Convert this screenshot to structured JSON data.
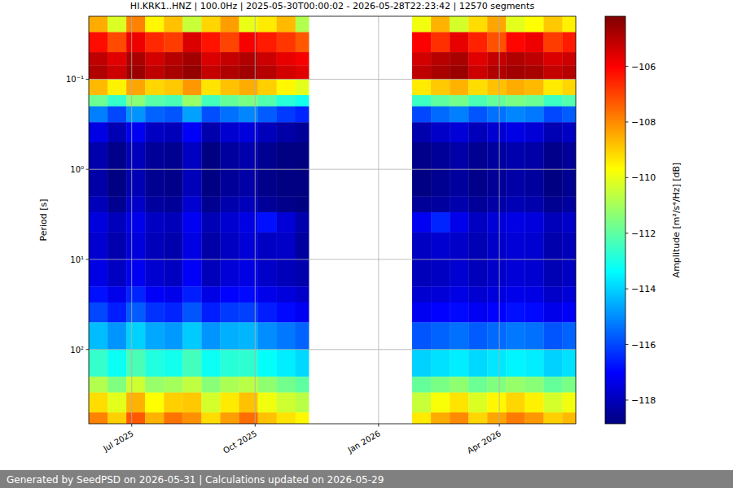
{
  "chart_data": {
    "type": "heatmap",
    "title": "HI.KRK1..HNZ | 100.0Hz | 2025-05-30T00:00:02 - 2026-05-28T22:23:42 | 12570 segments",
    "y_label": "Period [s]",
    "footer": "Generated by SeedPSD on 2026-05-31 | Calculations updated on 2026-05-29",
    "log": "y",
    "grid": true,
    "color": "jet",
    "xlim": [
      "2025-05-30",
      "2026-05-28"
    ],
    "xticks": [
      {
        "value": "2025-07-01",
        "label": "Jul 2025"
      },
      {
        "value": "2025-10-01",
        "label": "Oct 2025"
      },
      {
        "value": "2026-01-01",
        "label": "Jan 2026"
      },
      {
        "value": "2026-04-01",
        "label": "Apr 2026"
      }
    ],
    "ylim": [
      0.02,
      667
    ],
    "yticks": [
      {
        "value": 0.1,
        "label": "10⁻¹"
      },
      {
        "value": 1,
        "label": "10⁰"
      },
      {
        "value": 10,
        "label": "10¹"
      },
      {
        "value": 100,
        "label": "10²"
      }
    ],
    "x": [
      "2025-05-30",
      "2025-06-13",
      "2025-06-27",
      "2025-07-11",
      "2025-07-25",
      "2025-08-08",
      "2025-08-22",
      "2025-09-05",
      "2025-09-19",
      "2025-10-03",
      "2025-10-17",
      "2025-10-31",
      "2025-11-10",
      "2026-01-26",
      "2026-02-09",
      "2026-02-23",
      "2026-03-09",
      "2026-03-23",
      "2026-04-06",
      "2026-04-20",
      "2026-05-04",
      "2026-05-18"
    ],
    "y_bins": [
      0.02,
      0.03,
      0.05,
      0.07,
      0.1,
      0.15,
      0.2,
      0.3,
      0.5,
      1,
      2,
      3,
      5,
      10,
      20,
      30,
      50,
      100,
      200,
      300,
      500,
      667
    ],
    "cells": [
      [
        -108.5,
        -110.2,
        -107.9,
        -109.6,
        -108.8,
        -110.5,
        -109.1,
        -108.3,
        -110.0,
        -109.4,
        -108.7,
        -110.8,
        null,
        -109.9,
        -108.6,
        -110.3,
        -109.2,
        -108.4,
        -110.1,
        -109.7,
        -108.9,
        -109.5
      ],
      [
        -106.2,
        -107.1,
        -105.8,
        -106.6,
        -106.9,
        -105.5,
        -106.3,
        -107.0,
        -105.9,
        -106.4,
        -106.8,
        -107.3,
        null,
        -106.0,
        -106.7,
        -105.7,
        -106.5,
        -107.2,
        -106.1,
        -105.8,
        -106.9,
        -106.4
      ],
      [
        -105.1,
        -105.6,
        -104.8,
        -105.4,
        -105.0,
        -104.7,
        -105.5,
        -105.2,
        -104.9,
        -105.3,
        -105.7,
        -105.9,
        null,
        -105.4,
        -105.0,
        -104.8,
        -105.6,
        -105.2,
        -104.9,
        -105.1,
        -105.5,
        -105.3
      ],
      [
        -104.9,
        -105.3,
        -104.6,
        -105.1,
        -104.8,
        -104.5,
        -105.2,
        -104.9,
        -104.7,
        -105.0,
        -105.4,
        -105.6,
        null,
        -105.1,
        -104.8,
        -104.6,
        -105.3,
        -104.9,
        -104.7,
        -104.8,
        -105.2,
        -105.0
      ],
      [
        -108.7,
        -109.5,
        -108.4,
        -109.1,
        -108.9,
        -108.2,
        -109.3,
        -108.8,
        -108.5,
        -109.0,
        -109.6,
        -110.1,
        null,
        -109.4,
        -108.9,
        -108.6,
        -109.2,
        -108.8,
        -108.5,
        -108.7,
        -109.4,
        -109.1
      ],
      [
        -111.8,
        -112.6,
        -111.4,
        -112.1,
        -112.3,
        -111.2,
        -112.4,
        -111.9,
        -111.6,
        -112.2,
        -112.8,
        -113.1,
        null,
        -112.5,
        -112.0,
        -111.7,
        -112.3,
        -111.9,
        -111.6,
        -111.8,
        -112.5,
        -112.2
      ],
      [
        -115.2,
        -116.0,
        -114.9,
        -115.6,
        -115.8,
        -114.7,
        -115.9,
        -115.4,
        -115.1,
        -115.7,
        -116.2,
        -116.5,
        null,
        -116.0,
        -115.5,
        -115.2,
        -115.8,
        -115.4,
        -115.1,
        -115.3,
        -116.0,
        -115.7
      ],
      [
        -117.4,
        -118.1,
        -117.2,
        -117.9,
        -118.0,
        -117.1,
        -118.2,
        -117.7,
        -117.5,
        -118.0,
        -118.3,
        -118.5,
        null,
        -118.2,
        -117.8,
        -117.6,
        -118.0,
        -117.7,
        -117.4,
        -117.6,
        -118.1,
        -117.9
      ],
      [
        -118.2,
        -118.7,
        -118.0,
        -118.5,
        -118.6,
        -117.9,
        -118.8,
        -118.4,
        -118.2,
        -118.6,
        -118.8,
        -118.9,
        null,
        -118.7,
        -118.5,
        -118.3,
        -118.6,
        -118.4,
        -118.2,
        -118.3,
        -118.7,
        -118.5
      ],
      [
        -118.3,
        -118.8,
        -118.1,
        -118.6,
        -118.7,
        -118.0,
        -118.8,
        -118.5,
        -118.3,
        -118.7,
        -118.8,
        -118.9,
        null,
        -118.8,
        -118.6,
        -118.4,
        -118.7,
        -118.5,
        -118.3,
        -118.4,
        -118.8,
        -118.6
      ],
      [
        -118.0,
        -118.6,
        -117.8,
        -118.4,
        -118.5,
        -117.7,
        -118.6,
        -118.2,
        -118.0,
        -118.5,
        -118.7,
        -118.8,
        null,
        -118.5,
        -118.4,
        -118.2,
        -118.5,
        -118.3,
        -118.1,
        -118.2,
        -118.6,
        -118.4
      ],
      [
        -117.5,
        -118.0,
        -117.3,
        -117.9,
        -118.0,
        -117.2,
        -118.1,
        -117.7,
        -117.4,
        -116.8,
        -117.6,
        -118.2,
        null,
        -117.2,
        -116.5,
        -117.3,
        -117.9,
        -117.6,
        -117.4,
        -117.5,
        -118.0,
        -117.8
      ],
      [
        -117.7,
        -118.2,
        -117.5,
        -118.0,
        -118.2,
        -117.4,
        -118.3,
        -117.9,
        -117.6,
        -117.9,
        -117.8,
        -118.4,
        null,
        -117.9,
        -117.7,
        -117.8,
        -118.1,
        -117.8,
        -117.6,
        -117.7,
        -118.2,
        -118.0
      ],
      [
        -117.4,
        -117.9,
        -117.2,
        -117.7,
        -117.9,
        -117.1,
        -118.0,
        -117.6,
        -117.4,
        -117.8,
        -118.0,
        -118.2,
        null,
        -118.0,
        -117.9,
        -117.7,
        -118.0,
        -117.8,
        -117.6,
        -117.7,
        -118.1,
        -117.9
      ],
      [
        -116.8,
        -117.3,
        -116.5,
        -117.1,
        -117.3,
        -116.6,
        -117.4,
        -117.0,
        -116.9,
        -117.3,
        -117.5,
        -117.8,
        null,
        -117.7,
        -117.6,
        -117.4,
        -117.7,
        -117.5,
        -117.3,
        -117.4,
        -117.8,
        -117.6
      ],
      [
        -116.0,
        -116.6,
        -115.7,
        -116.3,
        -116.5,
        -115.8,
        -116.6,
        -116.2,
        -116.1,
        -116.6,
        -116.9,
        -117.2,
        null,
        -117.2,
        -117.0,
        -116.9,
        -117.2,
        -117.0,
        -116.8,
        -116.9,
        -117.3,
        -117.1
      ],
      [
        -114.3,
        -114.9,
        -114.0,
        -114.6,
        -114.8,
        -114.1,
        -114.9,
        -114.5,
        -114.4,
        -115.0,
        -115.3,
        -115.6,
        null,
        -115.8,
        -115.6,
        -115.4,
        -115.7,
        -115.5,
        -115.3,
        -115.4,
        -115.8,
        -115.6
      ],
      [
        -112.6,
        -113.2,
        -112.3,
        -112.9,
        -113.1,
        -112.4,
        -113.2,
        -112.8,
        -112.7,
        -113.3,
        -113.6,
        -113.9,
        null,
        -114.0,
        -113.8,
        -113.6,
        -113.9,
        -113.7,
        -113.5,
        -113.6,
        -114.0,
        -113.8
      ],
      [
        -110.8,
        -111.5,
        -110.4,
        -111.2,
        -111.0,
        -110.6,
        -111.4,
        -110.9,
        -110.7,
        -111.3,
        -111.7,
        -112.0,
        null,
        -111.9,
        -111.6,
        -111.3,
        -111.8,
        -111.5,
        -111.2,
        -111.4,
        -111.9,
        -111.6
      ],
      [
        -109.2,
        -110.1,
        -108.6,
        -109.7,
        -109.0,
        -108.9,
        -110.3,
        -109.4,
        -108.8,
        -109.9,
        -110.4,
        -110.7,
        null,
        -110.5,
        -109.8,
        -109.3,
        -110.2,
        -109.6,
        -109.1,
        -109.5,
        -110.3,
        -109.9
      ],
      [
        -107.9,
        -109.0,
        -107.3,
        -108.6,
        -107.7,
        -108.1,
        -109.2,
        -108.3,
        -107.6,
        -108.8,
        -109.3,
        -109.6,
        null,
        -109.4,
        -108.5,
        -108.0,
        -109.1,
        -108.4,
        -107.8,
        -108.2,
        -109.0,
        -108.7
      ]
    ],
    "colorbar": {
      "label": "Amplitude [m²/s⁴/Hz] [dB]",
      "lim": [
        -118.85,
        -104.2
      ],
      "ticks": [
        {
          "value": -106,
          "label": "−106"
        },
        {
          "value": -108,
          "label": "−108"
        },
        {
          "value": -110,
          "label": "−110"
        },
        {
          "value": -112,
          "label": "−112"
        },
        {
          "value": -114,
          "label": "−114"
        },
        {
          "value": -116,
          "label": "−116"
        },
        {
          "value": -118,
          "label": "−118"
        }
      ]
    }
  }
}
